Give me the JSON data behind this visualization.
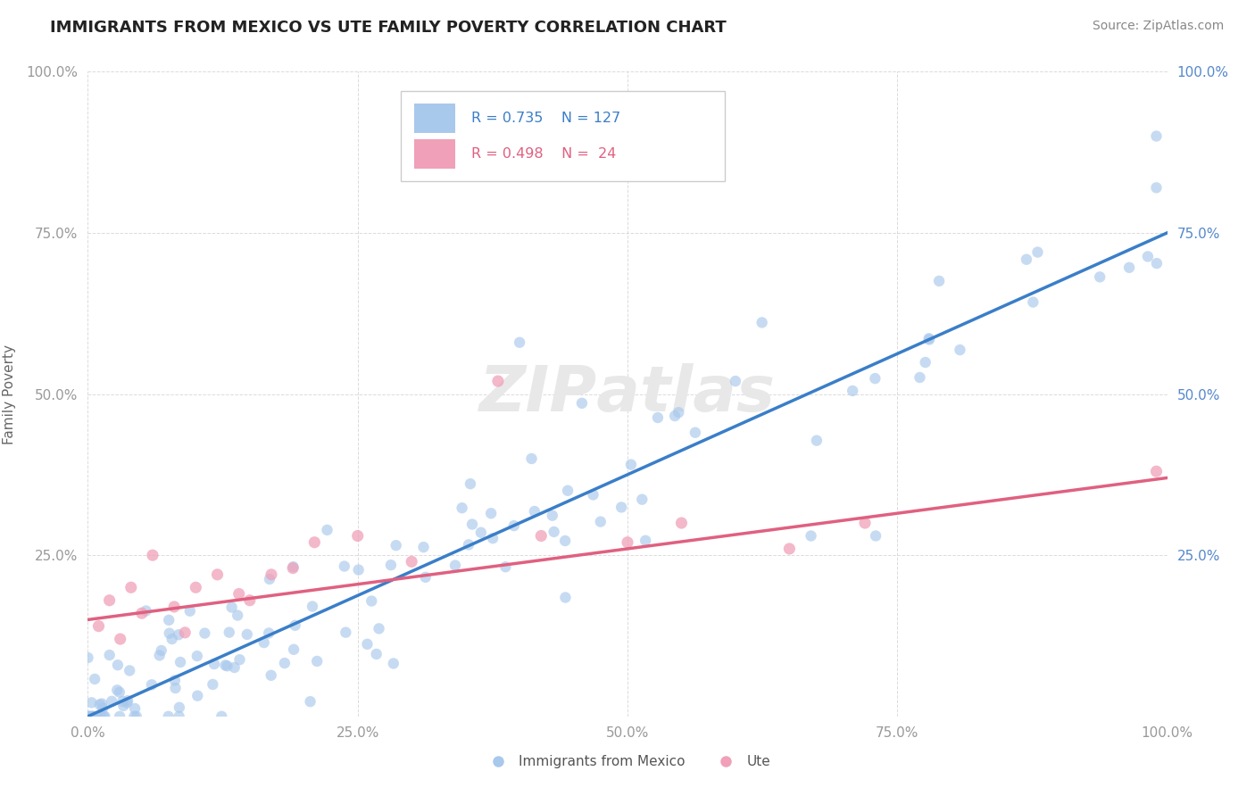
{
  "title": "IMMIGRANTS FROM MEXICO VS UTE FAMILY POVERTY CORRELATION CHART",
  "source": "Source: ZipAtlas.com",
  "ylabel": "Family Poverty",
  "watermark": "ZIPatlas",
  "legend_entries": [
    {
      "label": "Immigrants from Mexico",
      "R": "0.735",
      "N": "127",
      "color": "#A8C8EC"
    },
    {
      "label": "Ute",
      "R": "0.498",
      "N": "24",
      "color": "#F0A0B8"
    }
  ],
  "blue_color": "#A8C8EC",
  "pink_color": "#F0A0B8",
  "blue_line_color": "#3A7EC8",
  "pink_line_color": "#E06080",
  "right_tick_color": "#5588CC",
  "background_color": "#FFFFFF",
  "grid_color": "#CCCCCC",
  "xlim": [
    0,
    1
  ],
  "ylim": [
    0,
    1
  ],
  "xtick_positions": [
    0,
    0.25,
    0.5,
    0.75,
    1.0
  ],
  "xtick_labels": [
    "0.0%",
    "25.0%",
    "50.0%",
    "75.0%",
    "100.0%"
  ],
  "ytick_positions": [
    0.25,
    0.5,
    0.75,
    1.0
  ],
  "ytick_labels": [
    "25.0%",
    "50.0%",
    "75.0%",
    "100.0%"
  ],
  "blue_line_x0": 0.0,
  "blue_line_y0": 0.0,
  "blue_line_x1": 1.0,
  "blue_line_y1": 0.75,
  "pink_line_x0": 0.0,
  "pink_line_y0": 0.15,
  "pink_line_x1": 1.0,
  "pink_line_y1": 0.37
}
